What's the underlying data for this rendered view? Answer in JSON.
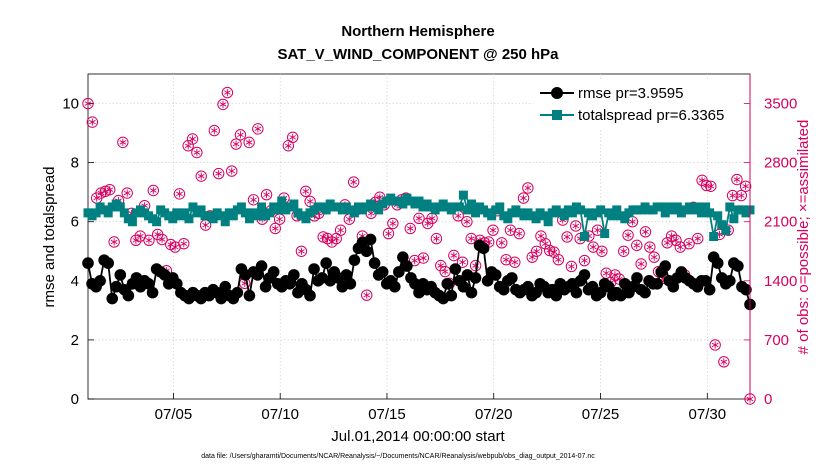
{
  "chart_data": {
    "type": "line",
    "title": "Northern Hemisphere",
    "subtitle": "SAT_V_WIND_COMPONENT @ 250 hPa",
    "xlabel": "Jul.01,2014 00:00:00 start",
    "ylabel_left": "rmse and totalspread",
    "ylabel_right": "# of obs: o=possible; ×=assimilated",
    "xlim": [
      1,
      32
    ],
    "ylim_left": [
      0,
      11
    ],
    "ylim_right": [
      0,
      3850
    ],
    "x_ticks": [
      {
        "value": 5,
        "label": "07/05"
      },
      {
        "value": 10,
        "label": "07/10"
      },
      {
        "value": 15,
        "label": "07/15"
      },
      {
        "value": 20,
        "label": "07/20"
      },
      {
        "value": 25,
        "label": "07/25"
      },
      {
        "value": 30,
        "label": "07/30"
      }
    ],
    "y_ticks_left": [
      "0",
      "2",
      "4",
      "6",
      "8",
      "10"
    ],
    "y_ticks_right": [
      "0",
      "700",
      "1400",
      "2100",
      "2800",
      "3500"
    ],
    "legend": [
      {
        "name": "rmse",
        "label": "rmse pr=3.9595"
      },
      {
        "name": "totalspread",
        "label": "totalspread pr=6.3365"
      }
    ],
    "colors": {
      "rmse": "#000000",
      "totalspread": "#008080",
      "obs": "#d6005f"
    },
    "series": [
      {
        "name": "rmse",
        "values": [
          4.6,
          3.9,
          3.8,
          4.0,
          4.7,
          4.6,
          3.4,
          3.8,
          4.2,
          3.7,
          3.5,
          3.9,
          4.1,
          3.8,
          4.0,
          3.9,
          3.6,
          4.4,
          4.3,
          4.2,
          3.9,
          4.1,
          3.9,
          3.6,
          3.5,
          3.4,
          3.6,
          3.5,
          3.4,
          3.6,
          3.5,
          3.7,
          3.6,
          3.4,
          3.8,
          3.5,
          3.4,
          3.6,
          4.4,
          4.2,
          3.5,
          4.3,
          4.2,
          4.5,
          3.8,
          4.1,
          4.3,
          3.9,
          3.8,
          4.0,
          3.9,
          4.2,
          3.6,
          3.9,
          3.7,
          3.5,
          4.4,
          4.0,
          4.1,
          4.6,
          4.0,
          4.3,
          4.1,
          3.8,
          4.2,
          3.9,
          4.7,
          5.1,
          5.3,
          5.0,
          5.4,
          4.6,
          4.2,
          4.3,
          3.9,
          4.0,
          3.8,
          4.3,
          4.8,
          4.5,
          4.1,
          3.9,
          3.6,
          3.9,
          3.7,
          3.8,
          3.6,
          3.5,
          3.4,
          3.9,
          3.5,
          4.4,
          4.0,
          3.8,
          4.2,
          3.6,
          4.1,
          5.2,
          5.1,
          4.0,
          4.3,
          4.2,
          3.8,
          3.7,
          4.0,
          4.1,
          3.7,
          3.6,
          3.7,
          3.8,
          3.5,
          3.6,
          3.9,
          3.8,
          3.6,
          3.7,
          3.5,
          3.9,
          3.7,
          3.8,
          3.9,
          3.6,
          4.0,
          4.2,
          3.7,
          3.8,
          3.5,
          3.6,
          3.9,
          3.8,
          3.5,
          3.6,
          3.5,
          3.9,
          3.6,
          3.8,
          4.1,
          3.7,
          3.6,
          4.0,
          3.9,
          3.9,
          4.3,
          4.5,
          4.0,
          3.8,
          4.1,
          4.3,
          4.1,
          4.0,
          3.9,
          3.8,
          4.0,
          4.0,
          3.7,
          4.8,
          4.6,
          4.1,
          3.9,
          4.0,
          4.6,
          4.5,
          3.8,
          3.7,
          3.2
        ]
      },
      {
        "name": "totalspread",
        "values": [
          6.3,
          6.2,
          6.3,
          6.5,
          6.4,
          6.3,
          6.5,
          6.6,
          6.5,
          6.3,
          6.1,
          6.0,
          6.3,
          6.4,
          6.3,
          6.2,
          6.1,
          6.0,
          6.4,
          6.3,
          6.2,
          6.1,
          6.3,
          6.2,
          6.3,
          6.1,
          6.5,
          6.3,
          6.4,
          6.2,
          6.2,
          6.1,
          6.3,
          6.2,
          6.0,
          6.3,
          6.2,
          6.4,
          6.5,
          6.3,
          6.1,
          6.3,
          6.2,
          6.5,
          6.2,
          6.3,
          6.5,
          6.4,
          6.7,
          6.4,
          6.5,
          6.6,
          6.3,
          6.2,
          6.1,
          6.3,
          6.4,
          6.5,
          6.5,
          6.4,
          6.6,
          6.5,
          6.5,
          6.4,
          6.5,
          6.4,
          6.3,
          6.5,
          6.4,
          6.5,
          6.6,
          6.5,
          6.4,
          6.6,
          6.7,
          6.8,
          6.7,
          6.7,
          6.6,
          6.8,
          6.7,
          6.6,
          6.7,
          6.5,
          6.6,
          6.5,
          6.4,
          6.5,
          6.6,
          6.5,
          6.4,
          6.5,
          6.5,
          6.9,
          6.4,
          6.6,
          6.3,
          6.5,
          6.4,
          6.3,
          6.2,
          6.4,
          6.5,
          6.2,
          6.1,
          6.3,
          6.4,
          6.3,
          6.2,
          6.3,
          6.2,
          6.1,
          6.3,
          6.2,
          6.0,
          6.3,
          6.4,
          6.3,
          6.2,
          6.4,
          6.3,
          6.5,
          6.4,
          5.5,
          6.3,
          6.2,
          6.3,
          6.4,
          5.6,
          6.3,
          6.2,
          6.4,
          6.2,
          6.1,
          6.3,
          6.4,
          6.4,
          6.4,
          6.5,
          6.4,
          6.4,
          6.5,
          6.5,
          6.3,
          6.5,
          6.4,
          6.5,
          6.3,
          6.4,
          6.5,
          6.4,
          6.5,
          6.3,
          6.5,
          6.3,
          5.5,
          6.2,
          5.9,
          5.7,
          6.5,
          6.1,
          6.4,
          6.4,
          6.3,
          6.4
        ]
      },
      {
        "name": "obs_possible",
        "values": [
          3500,
          3280,
          2380,
          2440,
          2460,
          2480,
          1860,
          2350,
          3040,
          2440,
          2200,
          1880,
          1930,
          2290,
          1880,
          2470,
          1950,
          1890,
          1520,
          1830,
          1800,
          2430,
          1840,
          3000,
          3080,
          2920,
          2640,
          2060,
          2170,
          3180,
          2670,
          3490,
          3630,
          2700,
          3020,
          3130,
          1370,
          3040,
          2360,
          3200,
          2130,
          2420,
          2230,
          2020,
          2130,
          2380,
          3000,
          3100,
          2170,
          1750,
          2460,
          2340,
          2170,
          2200,
          1920,
          1900,
          1860,
          1900,
          2000,
          2300,
          2130,
          2570,
          2250,
          1930,
          1230,
          2200,
          2330,
          2390,
          2300,
          1960,
          2080,
          2300,
          2360,
          2380,
          2020,
          1640,
          2140,
          1670,
          2080,
          2140,
          1900,
          1580,
          1510,
          1370,
          1700,
          2170,
          1620,
          2100,
          1900,
          1580,
          1880,
          1850,
          1860,
          2000,
          2230,
          1850,
          1650,
          2000,
          1620,
          1960,
          2380,
          2500,
          1680,
          1750,
          1930,
          1840,
          1760,
          1740,
          1650,
          2120,
          1920,
          1570,
          2050,
          1900,
          1640,
          1930,
          1800,
          2000,
          1750,
          1490,
          1380,
          1470,
          1420,
          1750,
          1940,
          2100,
          1820,
          1600,
          1980,
          1800,
          1680,
          1510,
          1430,
          1850,
          1930,
          1880,
          1800,
          1470,
          1840,
          2270,
          1900,
          2590,
          2530,
          2520,
          640,
          1950,
          440,
          2000,
          2410,
          2600,
          2410,
          2520,
          0
        ]
      }
    ]
  },
  "footnote": "data file: /Users/gharamti/Documents/NCAR/Reanalysis/~/Documents/NCAR/Reanalysis/webpub/obs_diag_output_2014-07.nc"
}
